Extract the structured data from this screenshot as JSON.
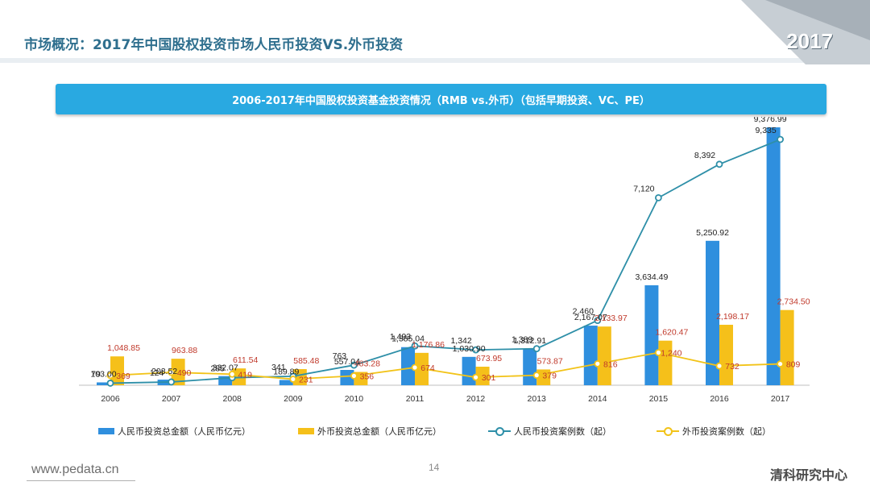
{
  "slide": {
    "title": "市场概况：2017年中国股权投资市场人民币投资VS.外币投资",
    "corner_year": "2017",
    "banner": "2006-2017年中国股权投资基金投资情况（RMB vs.外币）（包括早期投资、VC、PE）",
    "footer_url": "www.pedata.cn",
    "page_number": "14",
    "brand": "清科研究中心"
  },
  "colors": {
    "rmb_bar": "#2f8fde",
    "fx_bar": "#f5c01a",
    "rmb_line": "#2e8fa8",
    "fx_line": "#f2c318",
    "fx_label": "#c0392b",
    "banner": "#29a9e1",
    "title": "#2f6f8e"
  },
  "chart_data": {
    "type": "bar",
    "categories": [
      "2006",
      "2007",
      "2008",
      "2009",
      "2010",
      "2011",
      "2012",
      "2013",
      "2014",
      "2015",
      "2016",
      "2017"
    ],
    "series": [
      {
        "name": "人民币投资总金额（人民币亿元）",
        "kind": "bar",
        "values": [
          103.0,
          203.52,
          332.07,
          189.89,
          557.04,
          1385.04,
          1030.9,
          1312.91,
          2167.07,
          3634.49,
          5250.92,
          9376.99
        ],
        "labels": [
          "103.00",
          "203.52",
          "332.07",
          "189.89",
          "557.04",
          "1,385.04",
          "1,030.90",
          "1,312.91",
          "2,167.07",
          "3,634.49",
          "5,250.92",
          "9,376.99"
        ]
      },
      {
        "name": "外币投资总金额（人民币亿元）",
        "kind": "bar",
        "values": [
          1048.85,
          963.88,
          611.54,
          585.48,
          483.28,
          1176.86,
          673.95,
          573.87,
          2133.97,
          1620.47,
          2198.17,
          2734.5
        ],
        "labels": [
          "1,048.85",
          "963.88",
          "611.54",
          "585.48",
          "483.28",
          "1,176.86",
          "673.95",
          "573.87",
          "2,133.97",
          "1,620.47",
          "2,198.17",
          "2,734.50"
        ]
      },
      {
        "name": "人民币投资案例数（起）",
        "kind": "line",
        "values": [
          79,
          124,
          285,
          341,
          763,
          1493,
          1342,
          1389,
          2460,
          7120,
          8392,
          9335
        ],
        "labels": [
          "79",
          "124",
          "285",
          "341",
          "763",
          "1,493",
          "1,342",
          "1,389",
          "2,460",
          "7,120",
          "8,392",
          "9,335"
        ]
      },
      {
        "name": "外币投资案例数（起）",
        "kind": "line",
        "values": [
          369,
          490,
          419,
          231,
          356,
          674,
          301,
          379,
          816,
          1240,
          732,
          809
        ],
        "labels": [
          "369",
          "490",
          "419",
          "231",
          "356",
          "674",
          "301",
          "379",
          "816",
          "1,240",
          "732",
          "809"
        ]
      }
    ],
    "legend_position": "bottom",
    "grid": false
  }
}
